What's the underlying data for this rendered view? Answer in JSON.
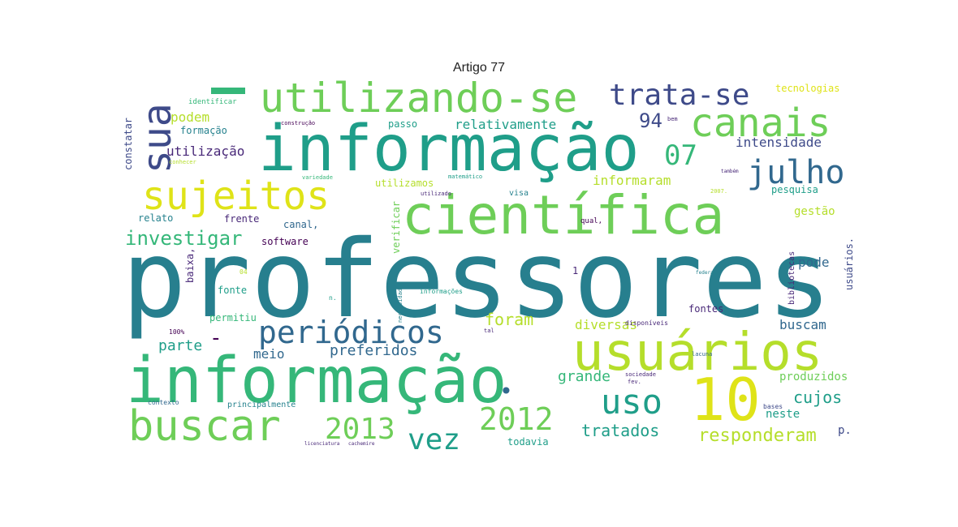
{
  "figure": {
    "title": "Artigo 77"
  },
  "cloud": {
    "colors": {
      "teal_dark": "#277f8e",
      "teal": "#1f9e89",
      "green": "#35b779",
      "lime": "#6ece58",
      "yellow": "#b5de2b",
      "yellow_bright": "#dfe318",
      "blue": "#3e4a89",
      "blue_mid": "#31688e",
      "purple": "#482878",
      "purple_dark": "#440154",
      "cyan": "#26828e"
    },
    "words": [
      "professores",
      "informação",
      "informação",
      "científica",
      "usuários",
      "utilizando-se",
      "sujeitos",
      "canais",
      "sua",
      "10",
      "buscar",
      "periódicos",
      "uso",
      "julho",
      "2013",
      "2012",
      "trata-se",
      "vez",
      "07",
      "94",
      "investigar",
      "responderam",
      "tratados",
      "parte",
      "meio",
      "preferidos",
      "foram",
      "diversas",
      "grande",
      "cujos",
      "buscam",
      "podem",
      "utilização",
      "relativamente",
      "intensidade",
      "informaram",
      "tecnologias",
      "constatar",
      "formação",
      "passo",
      "utilizamos",
      "verificar",
      "software",
      "canal,",
      "frente",
      "relato",
      "gestão",
      "pesquisa",
      "pode",
      "fontes",
      "fonte",
      "permitiu",
      "produzidos",
      "neste",
      "p.",
      "todavia",
      "principalmente",
      "baixa,",
      "bibliotecas",
      "usuários.",
      "informações",
      "identificar",
      "construção",
      "conhecer",
      "variedade",
      "matemático",
      "visa",
      "qual,",
      "tal",
      "necessidades",
      "sociedade",
      "fev.",
      "lacuna",
      "disponíveis",
      "bases",
      "contexto",
      "licenciatura",
      "cachemire",
      "2007.",
      "n.",
      "100%",
      "federal",
      "bem",
      "também",
      "utilizado",
      "04",
      "-",
      "•",
      "1"
    ]
  }
}
